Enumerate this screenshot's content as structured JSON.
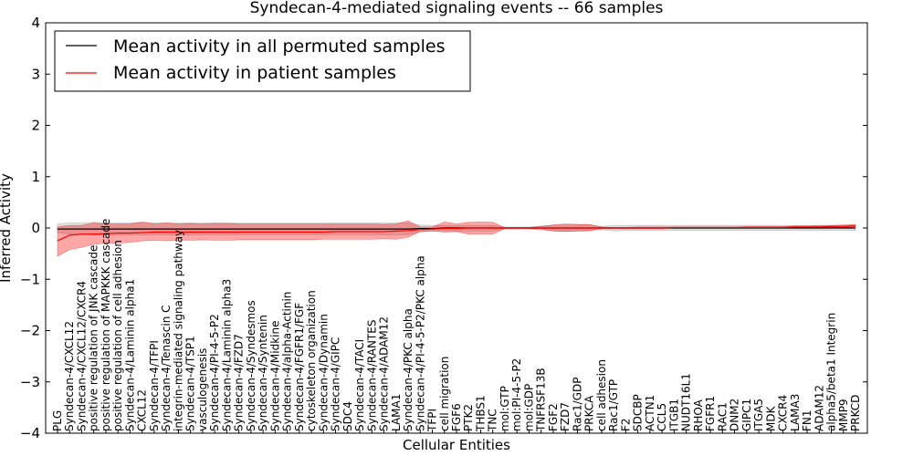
{
  "chart_data": {
    "type": "line",
    "title": "Syndecan-4-mediated signaling events -- 66 samples",
    "xlabel": "Cellular Entities",
    "ylabel": "Inferred Activity",
    "ylim": [
      -4,
      4
    ],
    "yticks": [
      "−4",
      "−3",
      "−2",
      "−1",
      "0",
      "1",
      "2",
      "3",
      "4"
    ],
    "legend_position": "top-left",
    "legend": [
      {
        "name": "Mean activity in all permuted samples",
        "color": "#000000"
      },
      {
        "name": "Mean activity in patient samples",
        "color": "#ff0000"
      }
    ],
    "categories": [
      "PLG",
      "Syndecan-4/CXCL12",
      "Syndecan-4/CXCL12/CXCR4",
      "positive regulation of JNK cascade",
      "positive regulation of MAPKKK cascade",
      "positive regulation of cell adhesion",
      "Syndecan-4/Laminin alpha1",
      "CXCL12",
      "Syndecan-4/TFPI",
      "Syndecan-4/Tenascin C",
      "integrin-mediated signaling pathway",
      "Syndecan-4/TSP1",
      "vasculogenesis",
      "Syndecan-4/PI-4-5-P2",
      "Syndecan-4/Laminin alpha3",
      "Syndecan-4/FZD7",
      "Syndecan-4/Syndesmos",
      "Syndecan-4/Syntenin",
      "Syndecan-4/Midkine",
      "Syndecan-4/alpha-Actinin",
      "Syndecan-4/FGFR1/FGF",
      "cytoskeleton organization",
      "Syndecan-4/Dynamin",
      "Syndecan-4/GIPC",
      "SDC4",
      "Syndecan-4/TACI",
      "Syndecan-4/RANTES",
      "Syndecan-4/ADAM12",
      "LAMA1",
      "Syndecan-4/PKC alpha",
      "Syndecan-4/PI-4-5-P2/PKC alpha",
      "TFPI",
      "cell migration",
      "FGF6",
      "PTK2",
      "THBS1",
      "TNC",
      "mol:GTP",
      "mol:PI-4-5-P2",
      "mol:GDP",
      "TNFRSF13B",
      "FGF2",
      "FZD7",
      "Rac1/GDP",
      "PRKCA",
      "cell adhesion",
      "Rac1/GTP",
      "F2",
      "SDCBP",
      "ACTN1",
      "CCL5",
      "ITGB1",
      "NUDT16L1",
      "RHOA",
      "FGFR1",
      "RAC1",
      "DNM2",
      "GIPC1",
      "ITGA5",
      "MDK",
      "CXCR4",
      "LAMA3",
      "FN1",
      "ADAM12",
      "alpha5/beta1 Integrin",
      "MMP9",
      "PRKCD"
    ],
    "series": [
      {
        "name": "Mean activity in patient samples",
        "color": "#ff0000",
        "values": [
          -0.25,
          -0.14,
          -0.12,
          -0.12,
          -0.11,
          -0.1,
          -0.1,
          -0.09,
          -0.08,
          -0.08,
          -0.08,
          -0.08,
          -0.08,
          -0.08,
          -0.08,
          -0.08,
          -0.08,
          -0.08,
          -0.08,
          -0.08,
          -0.08,
          -0.08,
          -0.08,
          -0.07,
          -0.07,
          -0.07,
          -0.07,
          -0.07,
          -0.06,
          -0.05,
          -0.03,
          -0.02,
          -0.01,
          -0.01,
          0.0,
          0.0,
          0.0,
          0.0,
          0.0,
          0.0,
          0.0,
          0.0,
          0.0,
          0.0,
          0.0,
          0.0,
          0.0,
          0.0,
          0.0,
          0.0,
          0.0,
          0.01,
          0.01,
          0.01,
          0.01,
          0.01,
          0.01,
          0.01,
          0.01,
          0.01,
          0.01,
          0.02,
          0.02,
          0.02,
          0.03,
          0.03,
          0.04
        ],
        "lower": [
          -0.55,
          -0.42,
          -0.38,
          -0.32,
          -0.3,
          -0.3,
          -0.28,
          -0.25,
          -0.24,
          -0.25,
          -0.24,
          -0.24,
          -0.23,
          -0.24,
          -0.24,
          -0.23,
          -0.23,
          -0.23,
          -0.23,
          -0.23,
          -0.23,
          -0.23,
          -0.22,
          -0.22,
          -0.22,
          -0.22,
          -0.22,
          -0.21,
          -0.22,
          -0.18,
          -0.07,
          -0.06,
          -0.08,
          -0.07,
          -0.12,
          -0.12,
          -0.12,
          -0.01,
          -0.01,
          -0.01,
          -0.02,
          -0.06,
          -0.07,
          -0.06,
          -0.05,
          -0.01,
          -0.01,
          -0.01,
          -0.01,
          -0.01,
          -0.01,
          0.0,
          0.0,
          0.0,
          0.0,
          0.0,
          0.0,
          0.0,
          0.0,
          0.0,
          0.0,
          0.0,
          0.0,
          0.0,
          0.01,
          0.01,
          0.02
        ],
        "upper": [
          0.02,
          0.05,
          0.05,
          0.1,
          0.08,
          0.08,
          0.08,
          0.12,
          0.08,
          0.1,
          0.08,
          0.09,
          0.08,
          0.09,
          0.09,
          0.08,
          0.08,
          0.08,
          0.08,
          0.08,
          0.08,
          0.08,
          0.08,
          0.08,
          0.08,
          0.08,
          0.08,
          0.07,
          0.08,
          0.14,
          0.02,
          0.02,
          0.12,
          0.08,
          0.11,
          0.12,
          0.11,
          0.01,
          0.01,
          0.01,
          0.03,
          0.06,
          0.08,
          0.07,
          0.07,
          0.02,
          0.01,
          0.01,
          0.02,
          0.02,
          0.02,
          0.02,
          0.02,
          0.02,
          0.02,
          0.02,
          0.02,
          0.03,
          0.03,
          0.03,
          0.03,
          0.04,
          0.04,
          0.05,
          0.05,
          0.06,
          0.07
        ]
      },
      {
        "name": "Mean activity in all permuted samples",
        "color": "#000000",
        "values": [
          -0.02,
          -0.02,
          -0.02,
          -0.02,
          -0.02,
          -0.02,
          -0.02,
          -0.02,
          -0.02,
          -0.02,
          -0.02,
          -0.02,
          -0.02,
          -0.02,
          -0.02,
          -0.02,
          -0.02,
          -0.02,
          -0.02,
          -0.02,
          -0.02,
          -0.02,
          -0.02,
          -0.02,
          -0.02,
          -0.02,
          -0.02,
          -0.02,
          -0.02,
          -0.02,
          -0.01,
          -0.01,
          0.0,
          0.0,
          0.0,
          0.0,
          0.0,
          0.0,
          0.0,
          0.0,
          0.0,
          0.0,
          0.0,
          0.0,
          0.0,
          0.0,
          0.0,
          0.0,
          0.0,
          0.0,
          0.0,
          0.0,
          0.0,
          0.0,
          0.0,
          0.0,
          0.0,
          0.0,
          0.0,
          0.0,
          0.0,
          0.0,
          0.0,
          0.0,
          0.0,
          0.0,
          0.0
        ],
        "lower": [
          -0.09,
          -0.12,
          -0.12,
          -0.14,
          -0.13,
          -0.13,
          -0.13,
          -0.14,
          -0.13,
          -0.13,
          -0.13,
          -0.13,
          -0.13,
          -0.13,
          -0.13,
          -0.13,
          -0.13,
          -0.13,
          -0.13,
          -0.13,
          -0.13,
          -0.13,
          -0.13,
          -0.13,
          -0.13,
          -0.13,
          -0.13,
          -0.13,
          -0.13,
          -0.13,
          -0.08,
          -0.06,
          -0.06,
          -0.06,
          -0.06,
          -0.06,
          -0.06,
          -0.02,
          -0.02,
          -0.02,
          -0.04,
          -0.06,
          -0.06,
          -0.06,
          -0.06,
          -0.03,
          -0.06,
          -0.05,
          -0.05,
          -0.05,
          -0.05,
          -0.05,
          -0.05,
          -0.05,
          -0.05,
          -0.05,
          -0.05,
          -0.05,
          -0.05,
          -0.05,
          -0.05,
          -0.05,
          -0.05,
          -0.05,
          -0.05,
          -0.05,
          -0.05
        ],
        "upper": [
          0.08,
          0.1,
          0.1,
          0.11,
          0.1,
          0.1,
          0.1,
          0.1,
          0.1,
          0.1,
          0.1,
          0.1,
          0.1,
          0.1,
          0.1,
          0.1,
          0.1,
          0.1,
          0.1,
          0.1,
          0.1,
          0.1,
          0.1,
          0.1,
          0.1,
          0.1,
          0.1,
          0.1,
          0.1,
          0.1,
          0.06,
          0.05,
          0.05,
          0.05,
          0.05,
          0.05,
          0.05,
          0.02,
          0.02,
          0.02,
          0.04,
          0.06,
          0.06,
          0.06,
          0.06,
          0.03,
          0.05,
          0.05,
          0.05,
          0.05,
          0.05,
          0.05,
          0.05,
          0.05,
          0.05,
          0.05,
          0.05,
          0.05,
          0.05,
          0.05,
          0.05,
          0.05,
          0.05,
          0.05,
          0.05,
          0.05,
          0.05
        ]
      }
    ]
  }
}
